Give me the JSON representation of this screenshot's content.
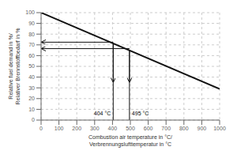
{
  "chart_data": {
    "type": "line",
    "xlabel": "Combustion air temperature in °C/\nVerbrennungslufttemperatur in °C",
    "ylabel": "Relative fuel demand in %/\nRelativer Brennstoffbedarf in %",
    "x": [
      0,
      1000
    ],
    "values": [
      100,
      29
    ],
    "color": "#111111",
    "xlim": [
      0,
      1000
    ],
    "ylim": [
      0,
      100
    ],
    "xticks": [
      0,
      100,
      200,
      300,
      400,
      500,
      600,
      700,
      800,
      900,
      1000
    ],
    "yticks": [
      0,
      10,
      20,
      30,
      40,
      50,
      60,
      70,
      80,
      90,
      100
    ],
    "grid": true,
    "annotations": [
      {
        "text": "404 °C",
        "x": 404,
        "y": 71.316,
        "hline_y": 72.5,
        "arrow_to_y": 35
      },
      {
        "text": "495 °C",
        "x": 495,
        "y": 64.855,
        "hline_y": 66.5,
        "arrow_to_y": 35
      }
    ]
  }
}
